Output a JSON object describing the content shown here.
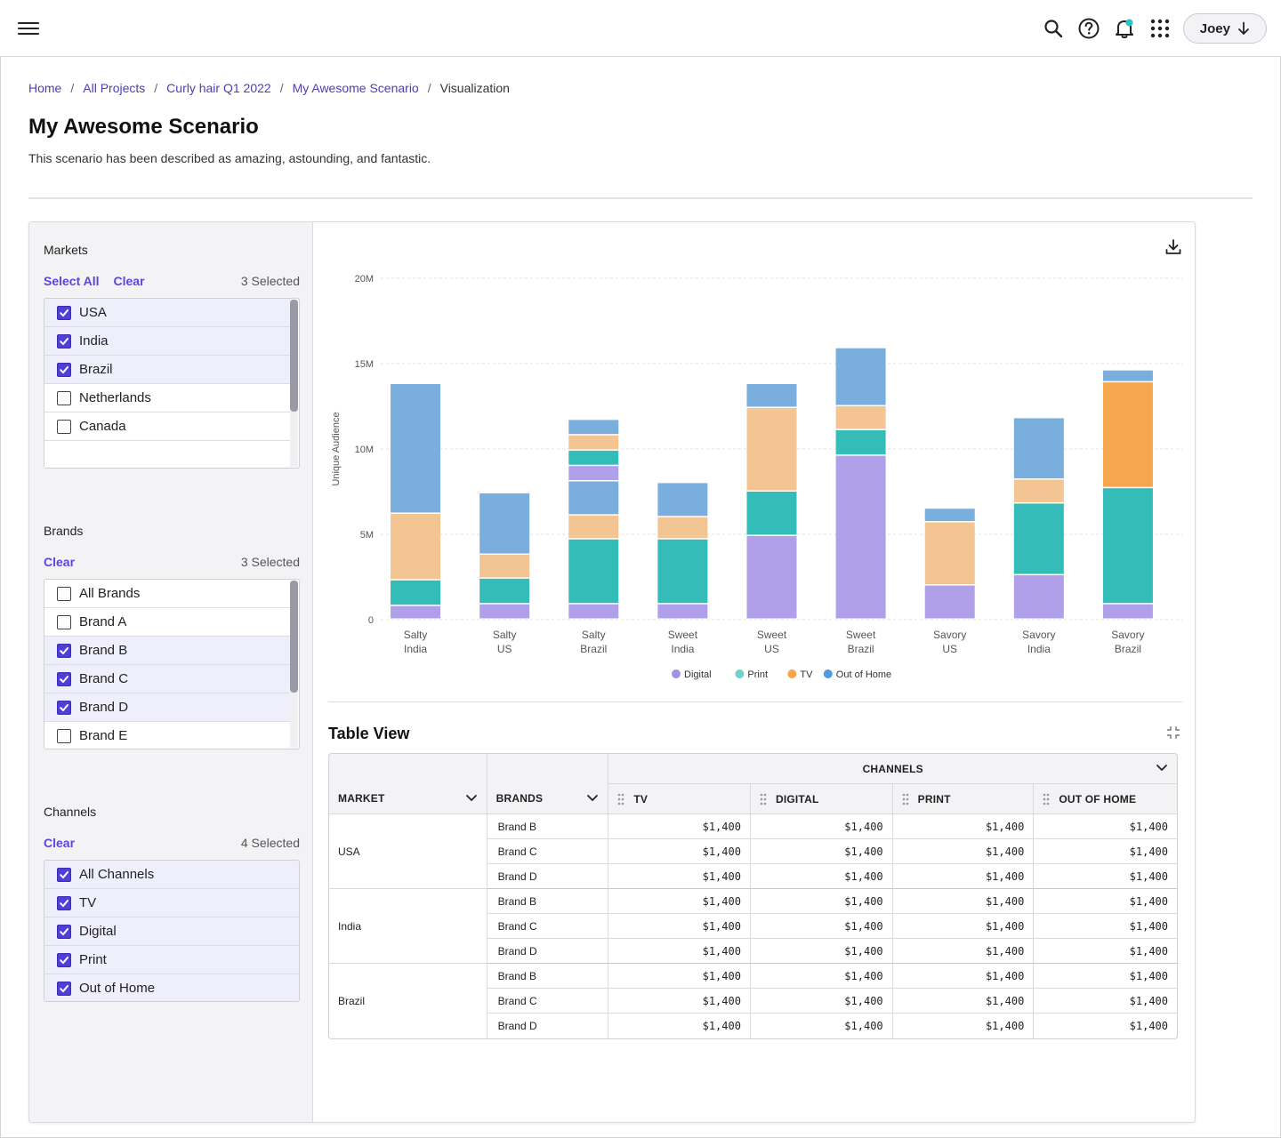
{
  "header": {
    "user_name": "Joey"
  },
  "breadcrumb": {
    "items": [
      "Home",
      "All Projects",
      "Curly hair Q1 2022",
      "My Awesome Scenario"
    ],
    "current": "Visualization"
  },
  "page": {
    "title": "My Awesome Scenario",
    "description": "This scenario has been described as amazing, astounding, and fantastic."
  },
  "filters": {
    "markets": {
      "title": "Markets",
      "select_all": "Select All",
      "clear": "Clear",
      "count": "3 Selected",
      "items": [
        {
          "label": "USA",
          "checked": true
        },
        {
          "label": "India",
          "checked": true
        },
        {
          "label": "Brazil",
          "checked": true
        },
        {
          "label": "Netherlands",
          "checked": false
        },
        {
          "label": "Canada",
          "checked": false
        }
      ]
    },
    "brands": {
      "title": "Brands",
      "clear": "Clear",
      "count": "3 Selected",
      "items": [
        {
          "label": "All Brands",
          "checked": false
        },
        {
          "label": "Brand A",
          "checked": false
        },
        {
          "label": "Brand B",
          "checked": true
        },
        {
          "label": "Brand C",
          "checked": true
        },
        {
          "label": "Brand D",
          "checked": true
        },
        {
          "label": "Brand E",
          "checked": false
        }
      ]
    },
    "channels": {
      "title": "Channels",
      "clear": "Clear",
      "count": "4 Selected",
      "items": [
        {
          "label": "All Channels",
          "checked": true
        },
        {
          "label": "TV",
          "checked": true
        },
        {
          "label": "Digital",
          "checked": true
        },
        {
          "label": "Print",
          "checked": true
        },
        {
          "label": "Out of Home",
          "checked": true
        }
      ]
    }
  },
  "chart_data": {
    "type": "bar",
    "stacked": true,
    "ylabel": "Unique Audience",
    "ylim": [
      0,
      20000000
    ],
    "yticks": [
      "0",
      "5M",
      "10M",
      "15M",
      "20M"
    ],
    "ytick_values": [
      0,
      5000000,
      10000000,
      15000000,
      20000000
    ],
    "grid": true,
    "legend_position": "bottom-center",
    "categories": [
      [
        "Salty",
        "India"
      ],
      [
        "Salty",
        "US"
      ],
      [
        "Salty",
        "Brazil"
      ],
      [
        "Sweet",
        "India"
      ],
      [
        "Sweet",
        "US"
      ],
      [
        "Sweet",
        "Brazil"
      ],
      [
        "Savory",
        "US"
      ],
      [
        "Savory",
        "India"
      ],
      [
        "Savory",
        "Brazil"
      ]
    ],
    "series": [
      {
        "name": "Digital",
        "color": "#b0a0ea",
        "values": [
          800000,
          900000,
          900000,
          900000,
          4900000,
          9600000,
          2000000,
          2600000,
          900000
        ]
      },
      {
        "name": "Print",
        "color": "#34bcb8",
        "values": [
          1500000,
          1500000,
          3800000,
          3800000,
          2600000,
          1500000,
          0,
          4200000,
          6800000
        ]
      },
      {
        "name": "TV",
        "color": "#f2c592",
        "values": [
          3900000,
          1400000,
          1400000,
          1300000,
          4900000,
          1400000,
          3700000,
          1400000,
          6200000
        ]
      },
      {
        "name": "Out of Home",
        "color": "#7aaedc",
        "values": [
          7600000,
          3600000,
          2000000,
          2000000,
          1400000,
          3400000,
          800000,
          3600000,
          700000
        ]
      }
    ],
    "extra_segments": [
      {
        "category_index": 2,
        "series": "Digital",
        "value": 900000,
        "color": "#b0a0ea",
        "order": 4
      },
      {
        "category_index": 2,
        "series": "Print",
        "value": 900000,
        "color": "#34bcb8",
        "order": 5
      },
      {
        "category_index": 2,
        "series": "TV",
        "value": 900000,
        "color": "#f2c592",
        "order": 6
      },
      {
        "category_index": 2,
        "series": "Out of Home",
        "value": 900000,
        "color": "#7aaedc",
        "order": 7
      }
    ],
    "highlight": {
      "category_index": 8,
      "series": "TV",
      "color": "#f5a64e"
    },
    "legend": [
      {
        "name": "Digital",
        "color": "#a391e8"
      },
      {
        "name": "Print",
        "color": "#6fd2cc"
      },
      {
        "name": "TV",
        "color": "#f5a64e"
      },
      {
        "name": "Out of Home",
        "color": "#4f9be0"
      }
    ]
  },
  "table": {
    "title": "Table View",
    "headers": {
      "market": "MARKET",
      "brands": "BRANDS",
      "channels": "CHANNELS",
      "tv": "TV",
      "digital": "DIGITAL",
      "print": "PRINT",
      "ooh": "OUT OF HOME"
    },
    "groups": [
      {
        "market": "USA",
        "rows": [
          {
            "brand": "Brand B",
            "tv": "$1,400",
            "digital": "$1,400",
            "print": "$1,400",
            "ooh": "$1,400"
          },
          {
            "brand": "Brand C",
            "tv": "$1,400",
            "digital": "$1,400",
            "print": "$1,400",
            "ooh": "$1,400"
          },
          {
            "brand": "Brand D",
            "tv": "$1,400",
            "digital": "$1,400",
            "print": "$1,400",
            "ooh": "$1,400"
          }
        ]
      },
      {
        "market": "India",
        "rows": [
          {
            "brand": "Brand B",
            "tv": "$1,400",
            "digital": "$1,400",
            "print": "$1,400",
            "ooh": "$1,400"
          },
          {
            "brand": "Brand C",
            "tv": "$1,400",
            "digital": "$1,400",
            "print": "$1,400",
            "ooh": "$1,400"
          },
          {
            "brand": "Brand D",
            "tv": "$1,400",
            "digital": "$1,400",
            "print": "$1,400",
            "ooh": "$1,400"
          }
        ]
      },
      {
        "market": "Brazil",
        "rows": [
          {
            "brand": "Brand B",
            "tv": "$1,400",
            "digital": "$1,400",
            "print": "$1,400",
            "ooh": "$1,400"
          },
          {
            "brand": "Brand C",
            "tv": "$1,400",
            "digital": "$1,400",
            "print": "$1,400",
            "ooh": "$1,400"
          },
          {
            "brand": "Brand D",
            "tv": "$1,400",
            "digital": "$1,400",
            "print": "$1,400",
            "ooh": "$1,400"
          }
        ]
      }
    ]
  },
  "icons": {
    "menu": "hamburger-menu-icon",
    "search": "search-icon",
    "help": "help-icon",
    "notifications": "bell-icon",
    "apps": "apps-grid-icon",
    "download": "download-icon",
    "collapse": "collapse-icon"
  },
  "colors": {
    "accent": "#5b45e0",
    "link": "#4a3fb8",
    "notification_dot": "#2fc1c0"
  }
}
